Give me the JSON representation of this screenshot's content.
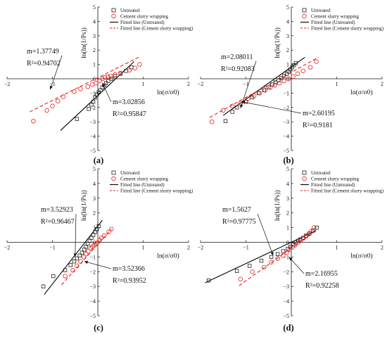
{
  "colors": {
    "untreated": "#222222",
    "cement": "#e8201c",
    "axis": "#111111",
    "fit_untreated": "#000000",
    "fit_cement": "#e8201c"
  },
  "legend": {
    "untreated": "Untreated",
    "cement": "Cement slurry wrapping",
    "fit_untreated": "Fitted line (Untreated)",
    "fit_cement": "Fitted line (Cement slurry wrapping)"
  },
  "chart_data": [
    {
      "type": "scatter",
      "panel_label": "(a)",
      "xlabel": "ln(σ/σ0)",
      "ylabel": "ln(ln(1/Ps))",
      "xlim": [
        -2,
        2
      ],
      "ylim": [
        -5,
        5
      ],
      "xticks": [
        -2,
        -1,
        0,
        1,
        2
      ],
      "yticks": [
        -5,
        -4,
        -3,
        -2,
        -1,
        0,
        1,
        2,
        3,
        4,
        5
      ],
      "legend_position": "top-right",
      "series": [
        {
          "name": "Untreated",
          "marker": "square",
          "x": [
            -0.46,
            -0.2,
            -0.14,
            -0.1,
            -0.06,
            -0.02,
            0.02,
            0.06,
            0.1,
            0.14,
            0.18,
            0.23,
            0.3,
            0.38,
            0.5,
            0.62,
            0.74
          ],
          "y": [
            -2.8,
            -2.1,
            -1.8,
            -1.6,
            -1.3,
            -1.1,
            -0.95,
            -0.8,
            -0.6,
            -0.45,
            -0.3,
            -0.15,
            0.0,
            0.2,
            0.35,
            0.55,
            0.8
          ]
        },
        {
          "name": "Cement slurry wrapping",
          "marker": "circle",
          "x": [
            -1.42,
            -1.12,
            -1.0,
            -0.88,
            -0.76,
            -0.52,
            -0.38,
            -0.22,
            -0.12,
            -0.04,
            0.04,
            0.1,
            0.16,
            0.22,
            0.28,
            0.38,
            0.5,
            0.7,
            0.82,
            0.92
          ],
          "y": [
            -2.95,
            -2.2,
            -1.9,
            -1.55,
            -1.25,
            -0.9,
            -0.7,
            -0.55,
            -0.4,
            -0.3,
            -0.15,
            0.0,
            0.1,
            0.15,
            0.2,
            0.3,
            0.4,
            0.6,
            0.75,
            1.0
          ]
        }
      ],
      "fits": [
        {
          "name": "Fitted line (Untreated)",
          "x": [
            -0.82,
            0.8
          ],
          "y": [
            -3.6,
            1.2
          ]
        },
        {
          "name": "Fitted line (Cement slurry wrapping)",
          "x": [
            -1.5,
            0.9
          ],
          "y": [
            -2.3,
            1.5
          ]
        }
      ],
      "annotations": [
        {
          "m": "m=1.37749",
          "r2": "R²=0.94702"
        },
        {
          "m": "m=3.02856",
          "r2": "R²=0.95847"
        }
      ]
    },
    {
      "type": "scatter",
      "panel_label": "(b)",
      "xlabel": "ln(σ/σ0)",
      "ylabel": "ln(ln(1/Ps))",
      "xlim": [
        -2,
        2
      ],
      "ylim": [
        -5,
        5
      ],
      "xticks": [
        -2,
        -1,
        0,
        1,
        2
      ],
      "yticks": [
        -5,
        -4,
        -3,
        -2,
        -1,
        0,
        1,
        2,
        3,
        4,
        5
      ],
      "legend_position": "top-right",
      "series": [
        {
          "name": "Untreated",
          "marker": "square",
          "x": [
            -1.45,
            -1.3,
            -1.2,
            -1.0,
            -0.86,
            -0.72,
            -0.6,
            -0.5,
            -0.42,
            -0.35,
            -0.28,
            -0.22,
            -0.16,
            -0.1,
            -0.06,
            -0.02,
            0.02,
            0.06,
            0.1
          ],
          "y": [
            -2.95,
            -2.3,
            -2.0,
            -1.6,
            -1.3,
            -1.0,
            -0.8,
            -0.6,
            -0.4,
            -0.25,
            -0.1,
            0.05,
            0.2,
            0.35,
            0.5,
            0.65,
            0.8,
            0.95,
            1.1
          ]
        },
        {
          "name": "Cement slurry wrapping",
          "marker": "circle",
          "x": [
            -1.75,
            -1.5,
            -1.3,
            -1.12,
            -0.96,
            -0.82,
            -0.7,
            -0.58,
            -0.46,
            -0.36,
            -0.26,
            -0.16,
            -0.06,
            0.04,
            0.14,
            0.26,
            0.42,
            0.55
          ],
          "y": [
            -3.0,
            -2.2,
            -1.9,
            -1.7,
            -1.4,
            -1.2,
            -1.0,
            -0.8,
            -0.6,
            -0.45,
            -0.3,
            -0.15,
            0.0,
            0.15,
            0.35,
            0.55,
            0.8,
            1.2
          ]
        },
        {
          "name": "Fitted line (Untreated)",
          "marker": "none",
          "x": [],
          "y": []
        }
      ],
      "fits": [
        {
          "name": "Fitted line (Untreated)",
          "x": [
            -1.5,
            0.3
          ],
          "y": [
            -2.55,
            1.5
          ]
        },
        {
          "name": "Fitted line (Cement slurry wrapping)",
          "x": [
            -1.8,
            0.6
          ],
          "y": [
            -2.7,
            1.5
          ]
        }
      ],
      "annotations": [
        {
          "m": "m=2.08011",
          "r2": "R²=0.92083"
        },
        {
          "m": "m=2.60195",
          "r2": "R²=0.9181"
        }
      ]
    },
    {
      "type": "scatter",
      "panel_label": "(c)",
      "xlabel": "ln(σ/σ0)",
      "ylabel": "ln(ln(1/Ps))",
      "xlim": [
        -2,
        2
      ],
      "ylim": [
        -5,
        5
      ],
      "xticks": [
        -2,
        -1,
        0,
        1,
        2
      ],
      "yticks": [
        -5,
        -4,
        -3,
        -2,
        -1,
        0,
        1,
        2,
        3,
        4,
        5
      ],
      "legend_position": "top-right",
      "series": [
        {
          "name": "Untreated",
          "marker": "square",
          "x": [
            -1.2,
            -0.98,
            -0.72,
            -0.6,
            -0.52,
            -0.46,
            -0.4,
            -0.35,
            -0.3,
            -0.26,
            -0.22,
            -0.18,
            -0.14,
            -0.1,
            -0.06,
            -0.02,
            0.02
          ],
          "y": [
            -3.0,
            -2.3,
            -1.9,
            -1.55,
            -1.3,
            -1.1,
            -0.9,
            -0.7,
            -0.5,
            -0.3,
            -0.1,
            0.1,
            0.3,
            0.5,
            0.7,
            0.9,
            1.1
          ]
        },
        {
          "name": "Cement slurry wrapping",
          "marker": "circle",
          "x": [
            -0.72,
            -0.55,
            -0.46,
            -0.38,
            -0.31,
            -0.26,
            -0.21,
            -0.16,
            -0.12,
            -0.08,
            -0.04,
            0.0,
            0.04,
            0.08,
            0.14,
            0.24,
            0.3
          ],
          "y": [
            -2.3,
            -1.9,
            -1.6,
            -1.3,
            -1.0,
            -0.8,
            -0.6,
            -0.4,
            -0.3,
            -0.2,
            -0.1,
            0.0,
            0.15,
            0.3,
            0.45,
            0.7,
            0.9
          ]
        }
      ],
      "fits": [
        {
          "name": "Fitted line (Untreated)",
          "x": [
            -1.18,
            0.1
          ],
          "y": [
            -3.55,
            1.5
          ]
        },
        {
          "name": "Fitted line (Cement slurry wrapping)",
          "x": [
            -0.8,
            0.3
          ],
          "y": [
            -2.9,
            0.9
          ]
        }
      ],
      "annotations": [
        {
          "m": "m=3.52923",
          "r2": "R²=0.96467"
        },
        {
          "m": "m=3.52366",
          "r2": "R²=0.93952"
        }
      ]
    },
    {
      "type": "scatter",
      "panel_label": "(d)",
      "xlabel": "ln(σ/σ0)",
      "ylabel": "ln(ln(1/Ps))",
      "xlim": [
        -2,
        2
      ],
      "ylim": [
        -5,
        5
      ],
      "xticks": [
        -2,
        -1,
        0,
        1,
        2
      ],
      "yticks": [
        -5,
        -4,
        -3,
        -2,
        -1,
        0,
        1,
        2,
        3,
        4,
        5
      ],
      "legend_position": "top-right",
      "series": [
        {
          "name": "Untreated",
          "marker": "square",
          "x": [
            -1.82,
            -1.2,
            -0.92,
            -0.66,
            -0.44,
            -0.3,
            -0.18,
            -0.08,
            -0.02,
            0.04,
            0.1,
            0.15,
            0.2,
            0.26,
            0.32,
            0.4,
            0.48,
            0.56
          ],
          "y": [
            -2.6,
            -1.95,
            -1.6,
            -1.25,
            -1.0,
            -0.8,
            -0.6,
            -0.45,
            -0.3,
            -0.15,
            0.0,
            0.1,
            0.2,
            0.3,
            0.45,
            0.6,
            0.8,
            1.0
          ]
        },
        {
          "name": "Cement slurry wrapping",
          "marker": "circle",
          "x": [
            -1.12,
            -0.86,
            -0.6,
            -0.44,
            -0.3,
            -0.18,
            -0.1,
            -0.04,
            0.02,
            0.08,
            0.14,
            0.2,
            0.26,
            0.32,
            0.38,
            0.44,
            0.5
          ],
          "y": [
            -2.5,
            -2.0,
            -1.7,
            -1.35,
            -1.1,
            -0.9,
            -0.7,
            -0.5,
            -0.35,
            -0.2,
            -0.05,
            0.1,
            0.25,
            0.4,
            0.55,
            0.75,
            1.0
          ]
        }
      ],
      "fits": [
        {
          "name": "Fitted line (Untreated)",
          "x": [
            -1.9,
            0.55
          ],
          "y": [
            -2.75,
            0.8
          ]
        },
        {
          "name": "Fitted line (Cement slurry wrapping)",
          "x": [
            -1.15,
            0.5
          ],
          "y": [
            -2.95,
            0.7
          ]
        }
      ],
      "annotations": [
        {
          "m": "m=1.5627",
          "r2": "R²=0.97775"
        },
        {
          "m": "m=2.16955",
          "r2": "R²=0.92258"
        }
      ]
    }
  ]
}
